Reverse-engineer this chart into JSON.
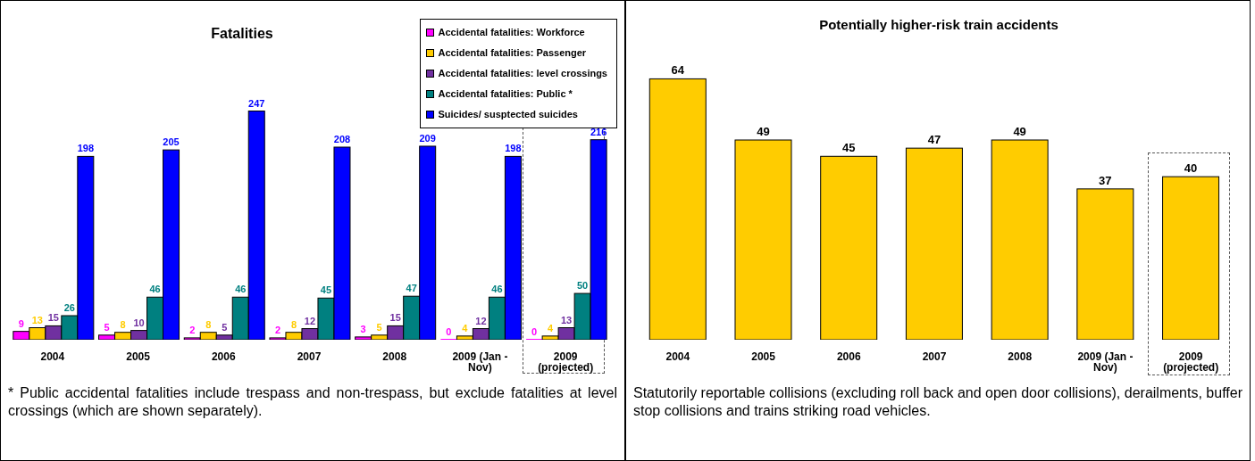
{
  "chart_data": [
    {
      "type": "bar",
      "title": "Fatalities",
      "categories": [
        "2004",
        "2005",
        "2006",
        "2007",
        "2008",
        "2009 (Jan - Nov)",
        "2009 (projected)"
      ],
      "data_labels": true,
      "legend": "top right",
      "series": [
        {
          "name": "Accidental fatalities:  Workforce",
          "color": "#ff00ff",
          "values": [
            9,
            5,
            2,
            2,
            3,
            0,
            0
          ]
        },
        {
          "name": "Accidental fatalities:  Passenger",
          "color": "#ffcc00",
          "values": [
            13,
            8,
            8,
            8,
            5,
            4,
            4
          ]
        },
        {
          "name": "Accidental fatalities:  level crossings",
          "color": "#7030a0",
          "values": [
            15,
            10,
            5,
            12,
            15,
            12,
            13
          ]
        },
        {
          "name": "Accidental fatalities:  Public *",
          "color": "#008080",
          "values": [
            26,
            46,
            46,
            45,
            47,
            46,
            50
          ]
        },
        {
          "name": "Suicides/ susptected suicides",
          "color": "#0000ff",
          "values": [
            198,
            205,
            247,
            208,
            209,
            198,
            216
          ]
        }
      ],
      "annotations": [
        "* Public accidental fatalities include trespass and non-trespass, but exclude fatalities at level crossings (which are shown separately)."
      ]
    },
    {
      "type": "bar",
      "title": "Potentially higher-risk train accidents",
      "categories": [
        "2004",
        "2005",
        "2006",
        "2007",
        "2008",
        "2009 (Jan - Nov)",
        "2009 (projected)"
      ],
      "values": [
        64,
        49,
        45,
        47,
        49,
        37,
        40
      ],
      "color": "#ffcc00",
      "data_labels": true,
      "annotations": [
        "Statutorily reportable collisions (excluding roll back and open door collisions), derailments, buffer stop collisions and trains striking road vehicles."
      ]
    }
  ]
}
